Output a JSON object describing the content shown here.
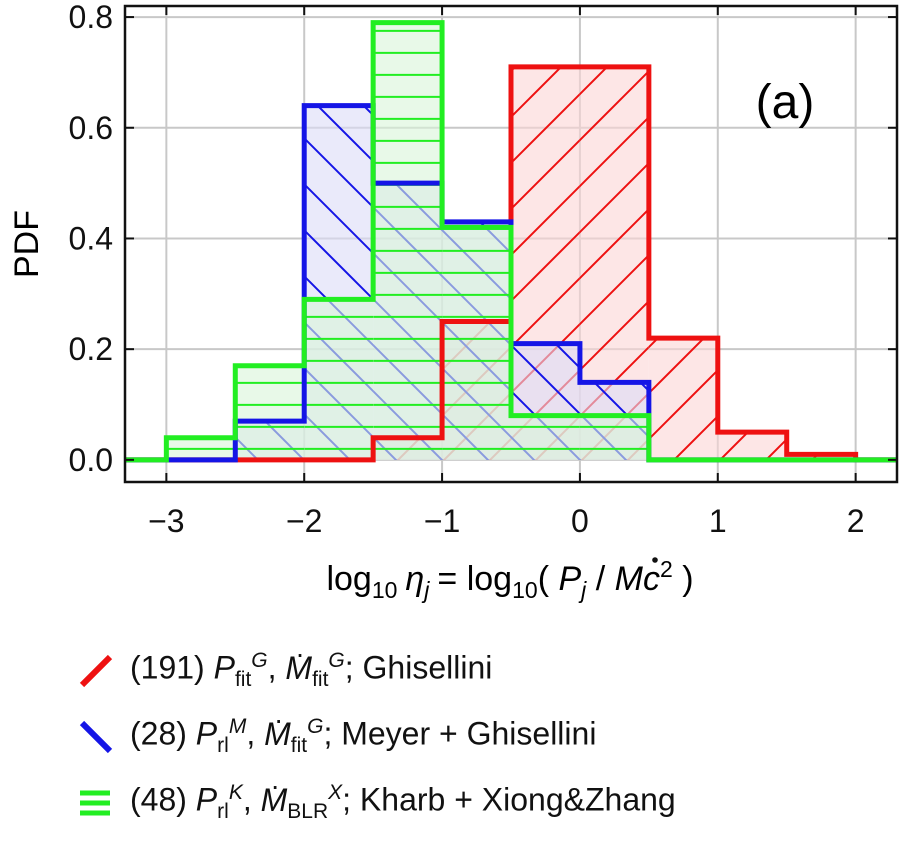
{
  "chart_data": {
    "type": "histogram",
    "panel_label": "(a)",
    "ylabel": "PDF",
    "xlabel": {
      "prefix": "log",
      "prefix_sub": "10",
      "eta": "η",
      "eta_sub": "j",
      "equals": "= log",
      "equals_sub": "10",
      "paren_open": "( ",
      "p": "P",
      "p_sub": "j",
      "slash": " / ",
      "mdot": "M",
      "c": "c",
      "c_sup": "2",
      "paren_close": " )"
    },
    "xlim": [
      -3.3,
      2.3
    ],
    "ylim": [
      -0.04,
      0.82
    ],
    "xticks": [
      -3,
      -2,
      -1,
      0,
      1,
      2
    ],
    "xtick_labels": [
      "−3",
      "−2",
      "−1",
      "0",
      "1",
      "2"
    ],
    "yticks": [
      0.0,
      0.2,
      0.4,
      0.6,
      0.8
    ],
    "ytick_labels": [
      "0.0",
      "0.2",
      "0.4",
      "0.6",
      "0.8"
    ],
    "grid": true,
    "bin_edges": [
      -3.5,
      -3.0,
      -2.5,
      -2.0,
      -1.5,
      -1.0,
      -0.5,
      0.0,
      0.5,
      1.0,
      1.5,
      2.0,
      2.5
    ],
    "series": [
      {
        "name": "Ghisellini",
        "color": "#ee1111",
        "fill": "#fbd6d6",
        "hatch": "forward",
        "values": [
          0,
          0,
          0,
          0,
          0.04,
          0.25,
          0.71,
          0.71,
          0.22,
          0.05,
          0.01,
          0
        ]
      },
      {
        "name": "Meyer + Ghisellini",
        "color": "#1515e6",
        "fill": "#dcdcf6",
        "hatch": "backward",
        "values": [
          0,
          0,
          0.07,
          0.64,
          0.5,
          0.43,
          0.21,
          0.14,
          0,
          0,
          0,
          0
        ]
      },
      {
        "name": "Kharb + Xiong&Zhang",
        "color": "#22ee22",
        "fill": "#d8f5d8",
        "hatch": "horizontal",
        "values": [
          0,
          0.04,
          0.17,
          0.29,
          0.79,
          0.42,
          0.08,
          0.08,
          0,
          0,
          0,
          0
        ]
      }
    ],
    "legend": [
      {
        "count": "(191) ",
        "p_sym": "P",
        "p_sub": "fit",
        "p_sup": "G",
        "sep": ", ",
        "m_sym": "M",
        "m_sub": "fit",
        "m_sup": "G",
        "tail": "; Ghisellini"
      },
      {
        "count": "(28) ",
        "p_sym": "P",
        "p_sub": "rl",
        "p_sup": "M",
        "sep": ", ",
        "m_sym": "M",
        "m_sub": "fit",
        "m_sup": "G",
        "tail": "; Meyer + Ghisellini"
      },
      {
        "count": "(48) ",
        "p_sym": "P",
        "p_sub": "rl",
        "p_sup": "K",
        "sep": ", ",
        "m_sym": "M",
        "m_sub": "BLR",
        "m_sup": "X",
        "tail": "; Kharb + Xiong&Zhang"
      }
    ]
  }
}
